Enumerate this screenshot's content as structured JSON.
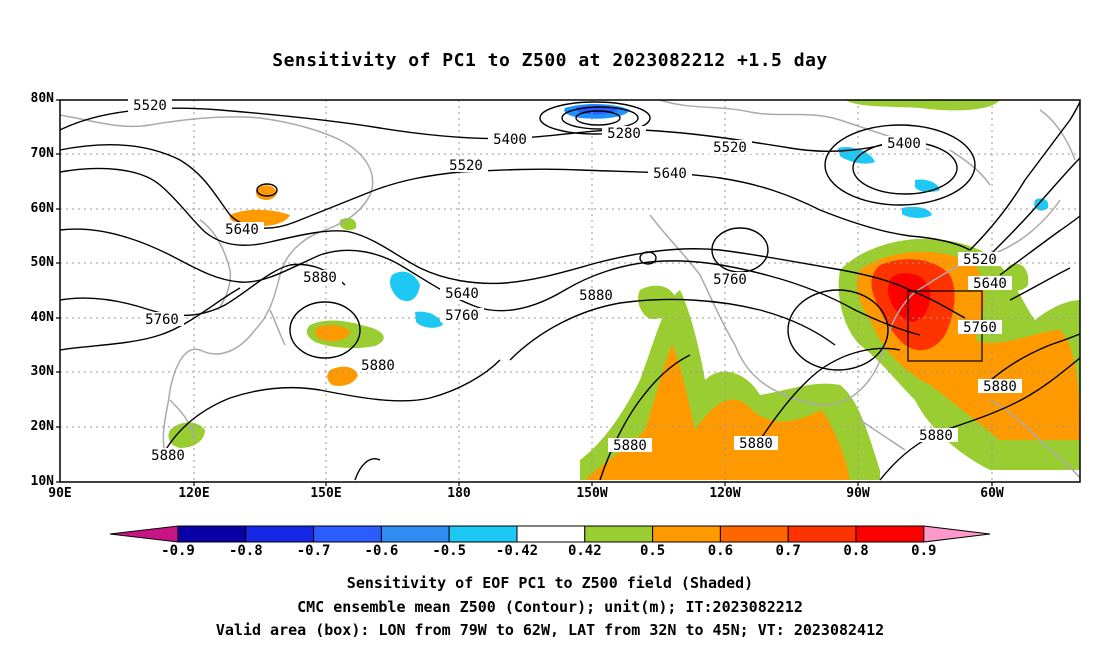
{
  "title": "Sensitivity of PC1 to Z500 at 2023082212 +1.5 day",
  "lat_labels": [
    "80N",
    "70N",
    "60N",
    "50N",
    "40N",
    "30N",
    "20N",
    "10N"
  ],
  "lon_labels": [
    "90E",
    "120E",
    "150E",
    "180",
    "150W",
    "120W",
    "90W",
    "60W"
  ],
  "contours": [
    {
      "label": "5520"
    },
    {
      "label": "5400"
    },
    {
      "label": "5280"
    },
    {
      "label": "5520"
    },
    {
      "label": "5400"
    },
    {
      "label": "5520"
    },
    {
      "label": "5640"
    },
    {
      "label": "5640"
    },
    {
      "label": "5760"
    },
    {
      "label": "5880"
    },
    {
      "label": "5640"
    },
    {
      "label": "5760"
    },
    {
      "label": "5880"
    },
    {
      "label": "5760"
    },
    {
      "label": "5520"
    },
    {
      "label": "5640"
    },
    {
      "label": "5760"
    },
    {
      "label": "5880"
    },
    {
      "label": "5880"
    },
    {
      "label": "5880"
    },
    {
      "label": "5880"
    },
    {
      "label": "5880"
    },
    {
      "label": "5880"
    }
  ],
  "colorbar": {
    "labels": [
      "-0.9",
      "-0.8",
      "-0.7",
      "-0.6",
      "-0.5",
      "-0.42",
      "0.42",
      "0.5",
      "0.6",
      "0.7",
      "0.8",
      "0.9"
    ],
    "colors": [
      "#0a00a8",
      "#1428e6",
      "#2a5cff",
      "#2f8cf0",
      "#1ec8f5",
      "#ffffff",
      "#9acd32",
      "#ff9900",
      "#ff6600",
      "#ff3300",
      "#ff0000"
    ],
    "low_end_color": "#c71585",
    "high_end_color": "#ff99cc"
  },
  "captions": [
    "Sensitivity of EOF PC1 to Z500 field (Shaded)",
    "CMC ensemble mean Z500 (Contour); unit(m); IT:2023082212",
    "Valid area (box): LON from 79W to 62W, LAT from 32N to 45N; VT: 2023082412"
  ]
}
